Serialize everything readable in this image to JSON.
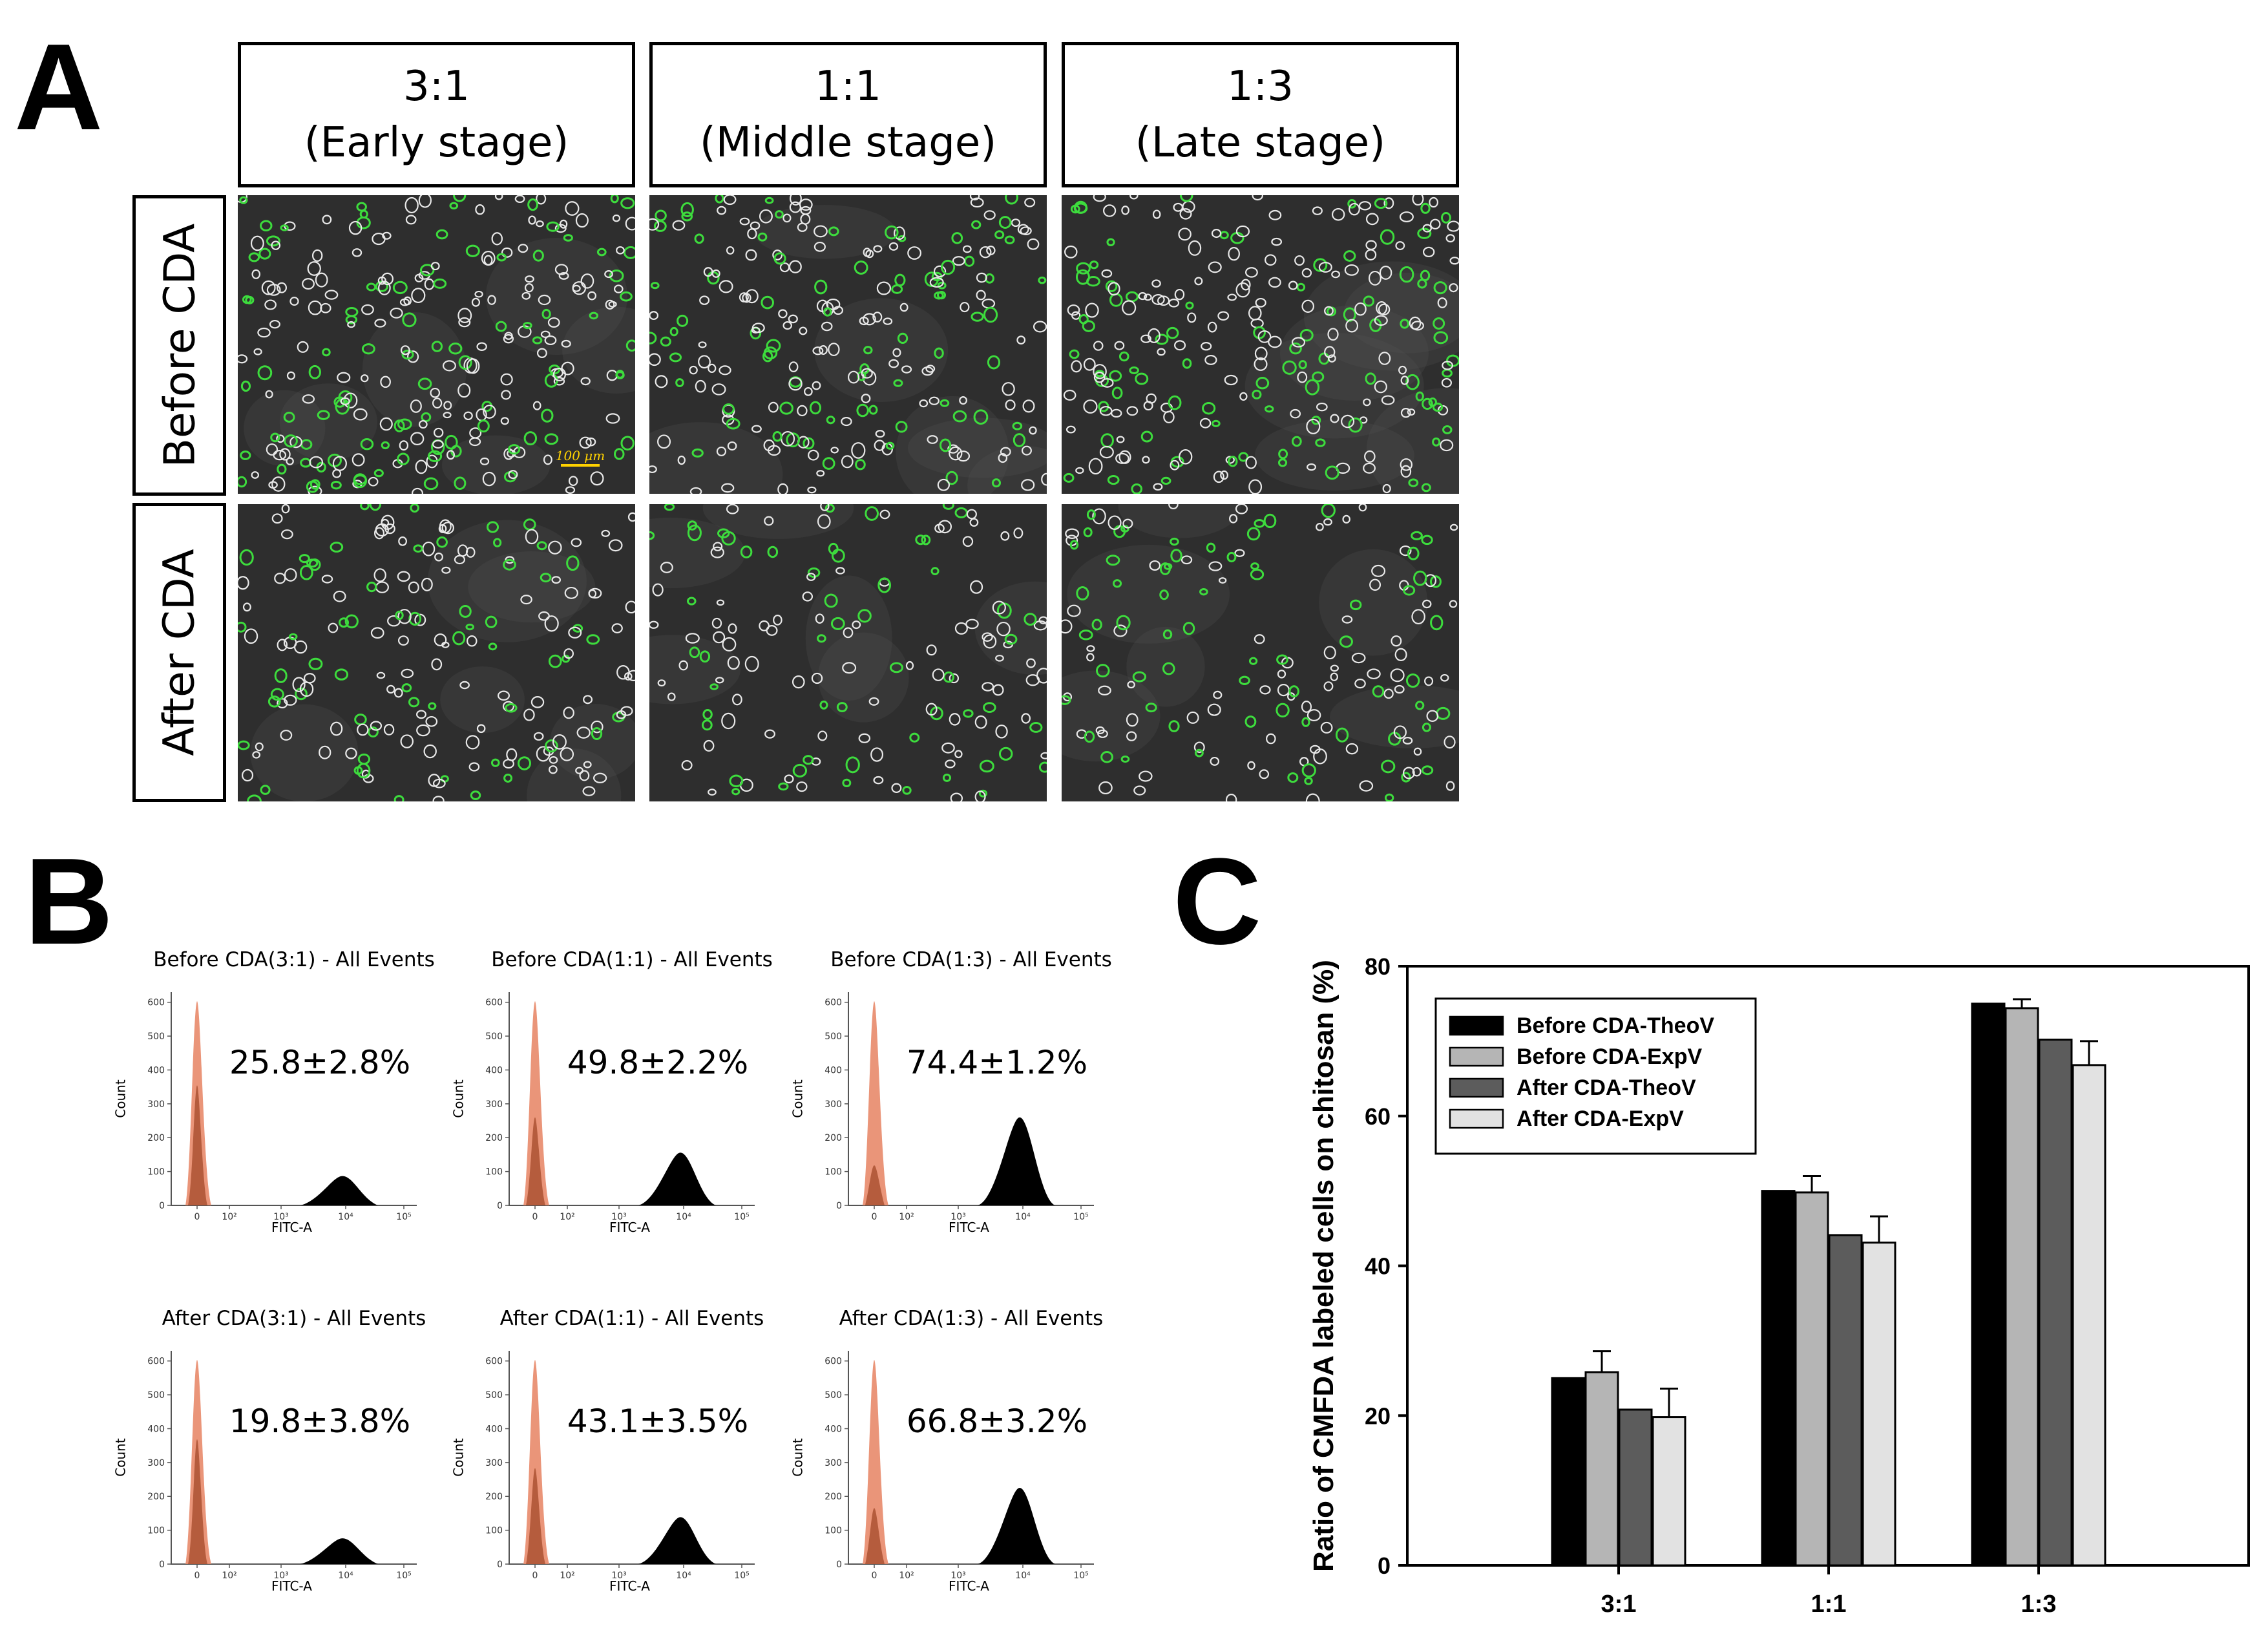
{
  "panels": {
    "a": "A",
    "b": "B",
    "c": "C"
  },
  "panel_a": {
    "columns": [
      {
        "ratio": "3:1",
        "stage": "(Early stage)"
      },
      {
        "ratio": "1:1",
        "stage": "(Middle stage)"
      },
      {
        "ratio": "1:3",
        "stage": "(Late stage)"
      }
    ],
    "rows": [
      "Before CDA",
      "After CDA"
    ],
    "scale_bar": "100 μm"
  },
  "panel_b": {
    "plots": [
      {
        "title": "Before CDA(3:1) - All Events",
        "pct": "25.8±2.8%",
        "peak": 0.25
      },
      {
        "title": "Before CDA(1:1) - All Events",
        "pct": "49.8±2.2%",
        "peak": 0.45
      },
      {
        "title": "Before CDA(1:3) - All Events",
        "pct": "74.4±1.2%",
        "peak": 0.75
      },
      {
        "title": "After CDA(3:1) - All Events",
        "pct": "19.8±3.8%",
        "peak": 0.22
      },
      {
        "title": "After CDA(1:1) - All Events",
        "pct": "43.1±3.5%",
        "peak": 0.4
      },
      {
        "title": "After CDA(1:3) - All Events",
        "pct": "66.8±3.2%",
        "peak": 0.65
      }
    ],
    "y_label": "Count",
    "x_label": "FITC-A",
    "y_ticks": [
      "0",
      "100",
      "200",
      "300",
      "400",
      "500",
      "600"
    ],
    "x_ticks": [
      "0",
      "10²",
      "10³",
      "10⁴",
      "10⁵"
    ],
    "colors": {
      "control": "#e8896a",
      "sample": "#000000"
    }
  },
  "chart_data": {
    "type": "bar",
    "title": "",
    "xlabel": "",
    "ylabel": "Ratio of CMFDA labeled cells on chitosan (%)",
    "ylim": [
      0,
      80
    ],
    "yticks": [
      0,
      20,
      40,
      60,
      80
    ],
    "categories": [
      "3:1",
      "1:1",
      "1:3"
    ],
    "legend_position": "top-left",
    "series": [
      {
        "name": "Before CDA-TheoV",
        "color": "#000000",
        "values": [
          25,
          50,
          75
        ],
        "errors": [
          0,
          0,
          0
        ]
      },
      {
        "name": "Before CDA-ExpV",
        "color": "#b5b5b5",
        "values": [
          25.8,
          49.8,
          74.4
        ],
        "errors": [
          2.8,
          2.2,
          1.2
        ]
      },
      {
        "name": "After CDA-TheoV",
        "color": "#5c5c5c",
        "values": [
          20.8,
          44.1,
          70.2
        ],
        "errors": [
          0,
          0,
          0
        ]
      },
      {
        "name": "After CDA-ExpV",
        "color": "#e2e2e2",
        "values": [
          19.8,
          43.1,
          66.8
        ],
        "errors": [
          3.8,
          3.5,
          3.2
        ]
      }
    ]
  }
}
